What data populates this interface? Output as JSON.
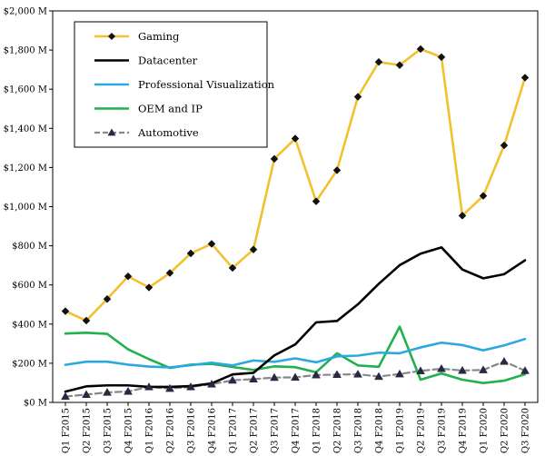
{
  "chart_data": {
    "type": "line",
    "title": "",
    "xlabel": "",
    "ylabel": "",
    "ylim": [
      0,
      2000
    ],
    "yticks": [
      0,
      200,
      400,
      600,
      800,
      1000,
      1200,
      1400,
      1600,
      1800,
      2000
    ],
    "ytick_labels": [
      "$0 M",
      "$200 M",
      "$400 M",
      "$600 M",
      "$800 M",
      "$1,000 M",
      "$1,200 M",
      "$1,400 M",
      "$1,600 M",
      "$1,800 M",
      "$2,000 M"
    ],
    "grid": false,
    "legend_position": "top-left",
    "categories": [
      "Q1 F2015",
      "Q2 F2015",
      "Q3 F2015",
      "Q4 F2015",
      "Q1 F2016",
      "Q2 F2016",
      "Q3 F2016",
      "Q4 F2016",
      "Q1 F2017",
      "Q2 F2017",
      "Q3 F2017",
      "Q4 F2017",
      "Q1 F2018",
      "Q2 F2018",
      "Q3 F2018",
      "Q4 F2018",
      "Q1 F2019",
      "Q2 F2019",
      "Q3 F2019",
      "Q4 F2019",
      "Q1 F2020",
      "Q2 F2020",
      "Q3 F2020"
    ],
    "series": [
      {
        "name": "Gaming",
        "color": "#F2C12E",
        "marker": "diamond",
        "dashed": false,
        "values": [
          466,
          418,
          528,
          644,
          587,
          661,
          761,
          810,
          687,
          781,
          1244,
          1348,
          1027,
          1186,
          1561,
          1739,
          1723,
          1805,
          1764,
          954,
          1055,
          1313,
          1659
        ]
      },
      {
        "name": "Datacenter",
        "color": "#000000",
        "marker": "none",
        "dashed": false,
        "values": [
          55,
          82,
          87,
          87,
          79,
          79,
          83,
          97,
          143,
          151,
          240,
          296,
          409,
          416,
          501,
          606,
          701,
          760,
          792,
          679,
          634,
          655,
          726
        ]
      },
      {
        "name": "Professional Visualization",
        "color": "#2AA9DF",
        "marker": "none",
        "dashed": false,
        "values": [
          192,
          208,
          208,
          193,
          183,
          179,
          190,
          203,
          189,
          214,
          207,
          225,
          205,
          235,
          239,
          254,
          251,
          281,
          305,
          293,
          266,
          291,
          324
        ]
      },
      {
        "name": "OEM and IP",
        "color": "#22B14C",
        "marker": "none",
        "dashed": false,
        "values": [
          352,
          356,
          350,
          271,
          221,
          176,
          193,
          197,
          181,
          166,
          184,
          180,
          154,
          251,
          189,
          182,
          387,
          116,
          148,
          116,
          99,
          111,
          144
        ]
      },
      {
        "name": "Automotive",
        "color": "#888888",
        "marker": "triangle",
        "dashed": true,
        "values": [
          30,
          40,
          51,
          56,
          79,
          71,
          79,
          93,
          113,
          119,
          127,
          128,
          140,
          142,
          144,
          132,
          145,
          161,
          172,
          163,
          166,
          209,
          162
        ]
      }
    ]
  }
}
